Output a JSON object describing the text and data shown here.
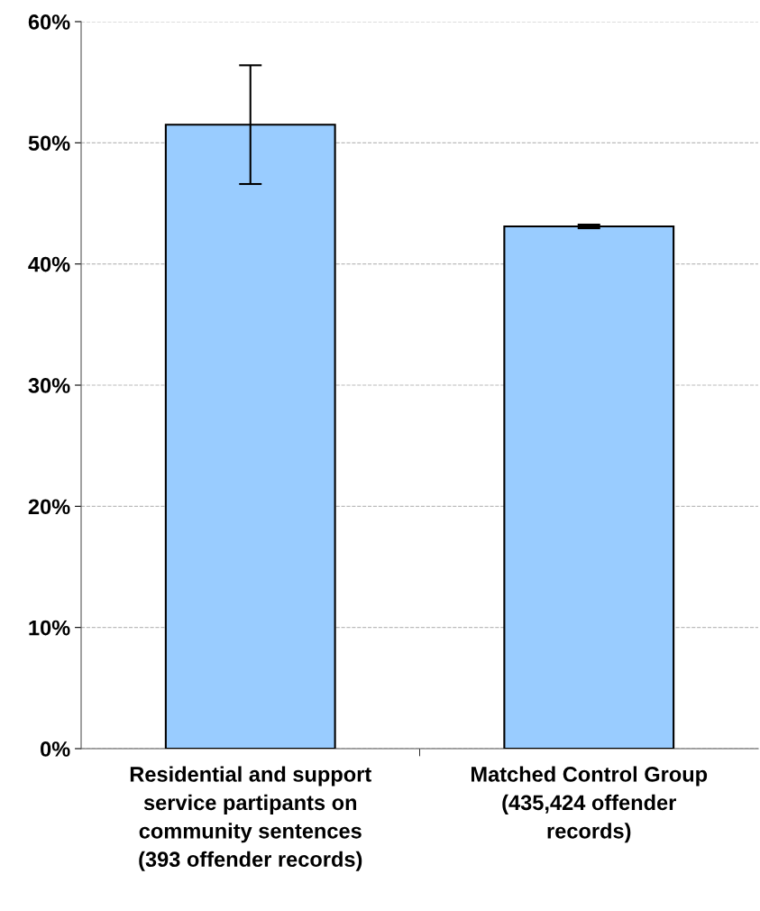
{
  "chart_data": {
    "type": "bar",
    "categories": [
      "Residential and support\nservice partipants on\ncommunity sentences\n(393 offender records)",
      "Matched Control Group\n(435,424 offender\nrecords)"
    ],
    "values": [
      51.5,
      43.1
    ],
    "errors": [
      4.9,
      0.15
    ],
    "color": "#99ccff",
    "ylim": [
      0,
      60
    ],
    "yticks": [
      {
        "value": 0,
        "label": "0%"
      },
      {
        "value": 10,
        "label": "10%"
      },
      {
        "value": 20,
        "label": "20%"
      },
      {
        "value": 30,
        "label": "30%"
      },
      {
        "value": 40,
        "label": "40%"
      },
      {
        "value": 50,
        "label": "50%"
      },
      {
        "value": 60,
        "label": "60%"
      }
    ],
    "grid": "y",
    "line_style": "dashed"
  }
}
